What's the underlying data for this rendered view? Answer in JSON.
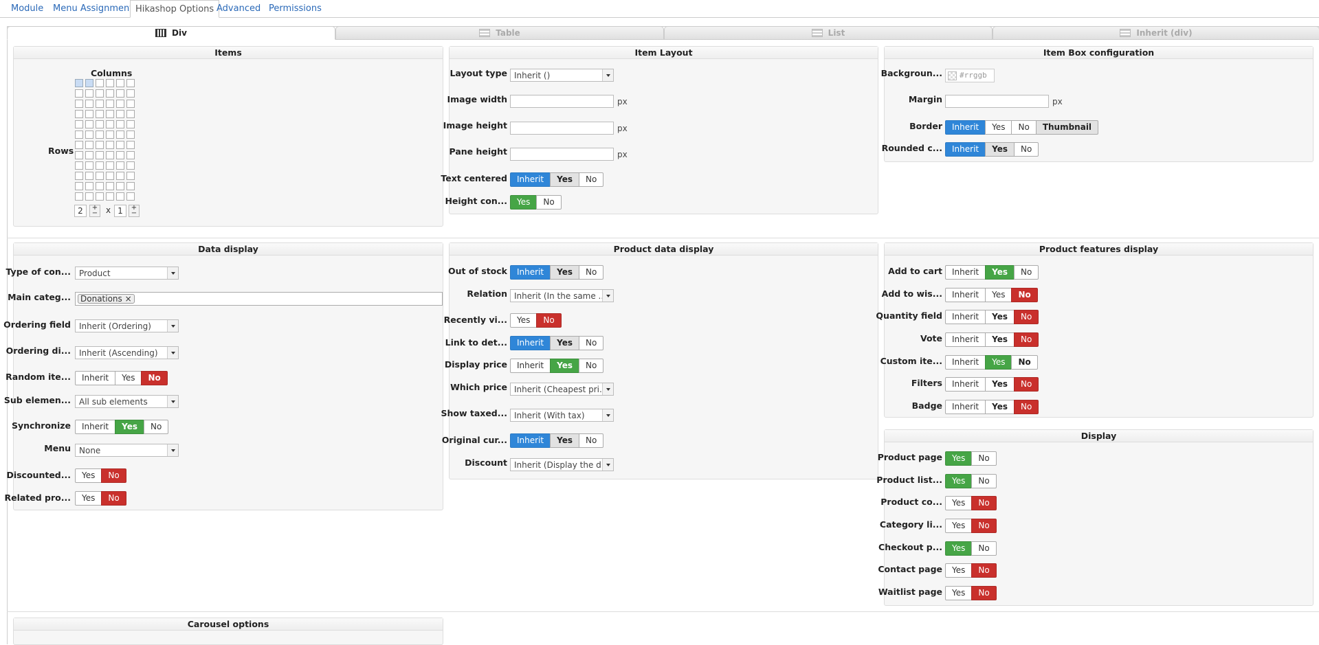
{
  "tabs": [
    "Module",
    "Menu Assignment",
    "Hikashop Options",
    "Advanced",
    "Permissions"
  ],
  "subtabs": [
    "Div",
    "Table",
    "List",
    "Inherit (div)"
  ],
  "items": {
    "title": "Items",
    "columns_label": "Columns",
    "rows_label": "Rows",
    "rows_value": "2",
    "cols_value": "1",
    "x": "x",
    "pm": "+\n−"
  },
  "item_layout": {
    "title": "Item Layout",
    "layout_type_label": "Layout type",
    "layout_type_value": "Inherit ()",
    "image_width_label": "Image width",
    "image_height_label": "Image height",
    "pane_height_label": "Pane height",
    "px": "px",
    "text_centered_label": "Text centered",
    "height_con_label": "Height con..."
  },
  "item_box": {
    "title": "Item Box configuration",
    "background_label": "Backgroun...",
    "color_placeholder": "#rrggb",
    "margin_label": "Margin",
    "border_label": "Border",
    "rounded_label": "Rounded c...",
    "thumbnail": "Thumbnail"
  },
  "btn": {
    "inherit": "Inherit",
    "yes": "Yes",
    "no": "No"
  },
  "data_display": {
    "title": "Data display",
    "type_label": "Type of con...",
    "type_value": "Product",
    "main_cat_label": "Main categ...",
    "main_cat_tag": "Donations",
    "ordering_field_label": "Ordering field",
    "ordering_field_value": "Inherit (Ordering)",
    "ordering_dir_label": "Ordering di...",
    "ordering_dir_value": "Inherit (Ascending)",
    "random_label": "Random ite...",
    "sub_label": "Sub elemen...",
    "sub_value": "All sub elements",
    "sync_label": "Synchronize",
    "menu_label": "Menu",
    "menu_value": "None",
    "discounted_label": "Discounted...",
    "related_label": "Related pro..."
  },
  "product_data": {
    "title": "Product data display",
    "out_of_stock_label": "Out of stock",
    "relation_label": "Relation",
    "relation_value": "Inherit (In the same ...",
    "recently_label": "Recently vi...",
    "link_label": "Link to det...",
    "display_price_label": "Display price",
    "which_price_label": "Which price",
    "which_price_value": "Inherit (Cheapest pri...",
    "show_taxed_label": "Show taxed...",
    "show_taxed_value": "Inherit (With tax)",
    "original_label": "Original cur...",
    "discount_label": "Discount",
    "discount_value": "Inherit (Display the d..."
  },
  "features": {
    "title": "Product features display",
    "add_to_cart": "Add to cart",
    "add_to_wish": "Add to wis...",
    "quantity": "Quantity field",
    "vote": "Vote",
    "custom": "Custom ite...",
    "filters": "Filters",
    "badge": "Badge"
  },
  "display": {
    "title": "Display",
    "product_page": "Product page",
    "product_list": "Product list...",
    "product_co": "Product co...",
    "category_li": "Category li...",
    "checkout": "Checkout p...",
    "contact": "Contact page",
    "waitlist": "Waitlist page"
  },
  "carousel": {
    "title": "Carousel options"
  },
  "colors": {
    "blue": "#2f86d8",
    "green": "#46a546",
    "red": "#c9302c"
  }
}
